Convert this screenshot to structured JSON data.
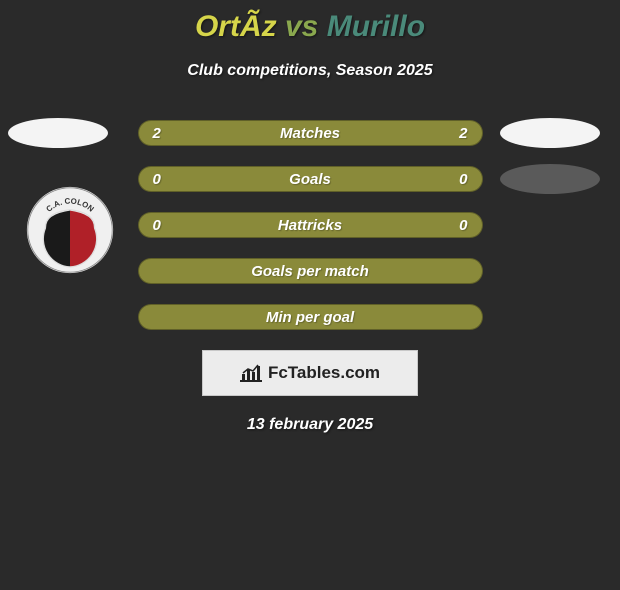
{
  "page_background": "#2a2a2a",
  "title": {
    "player1": "OrtÃ­z",
    "vs": "vs",
    "player2": "Murillo",
    "player1_color": "#d6d54a",
    "vs_color": "#8aa84e",
    "player2_color": "#4a8a7a"
  },
  "subtitle": "Club competitions, Season 2025",
  "rows": [
    {
      "left": "2",
      "label": "Matches",
      "right": "2",
      "bar_color": "#8a8a3a",
      "text_color": "#ffffff",
      "right_blob_color": "#f4f4f4"
    },
    {
      "left": "0",
      "label": "Goals",
      "right": "0",
      "bar_color": "#8a8a3a",
      "text_color": "#ffffff",
      "right_blob_color": "#5a5a5a"
    },
    {
      "left": "0",
      "label": "Hattricks",
      "right": "0",
      "bar_color": "#8a8a3a",
      "text_color": "#ffffff"
    },
    {
      "left": "",
      "label": "Goals per match",
      "right": "",
      "bar_color": "#8a8a3a",
      "text_color": "#ffffff"
    },
    {
      "left": "",
      "label": "Min per goal",
      "right": "",
      "bar_color": "#8a8a3a",
      "text_color": "#ffffff"
    }
  ],
  "left_blob_color_top": "#f4f4f4",
  "club_badge": {
    "text": "C.A. COLON",
    "left_color": "#1a1a1a",
    "right_color": "#b02028",
    "ring_color": "#f0f0f0"
  },
  "fctables_label": "FcTables.com",
  "date": "13 february 2025"
}
